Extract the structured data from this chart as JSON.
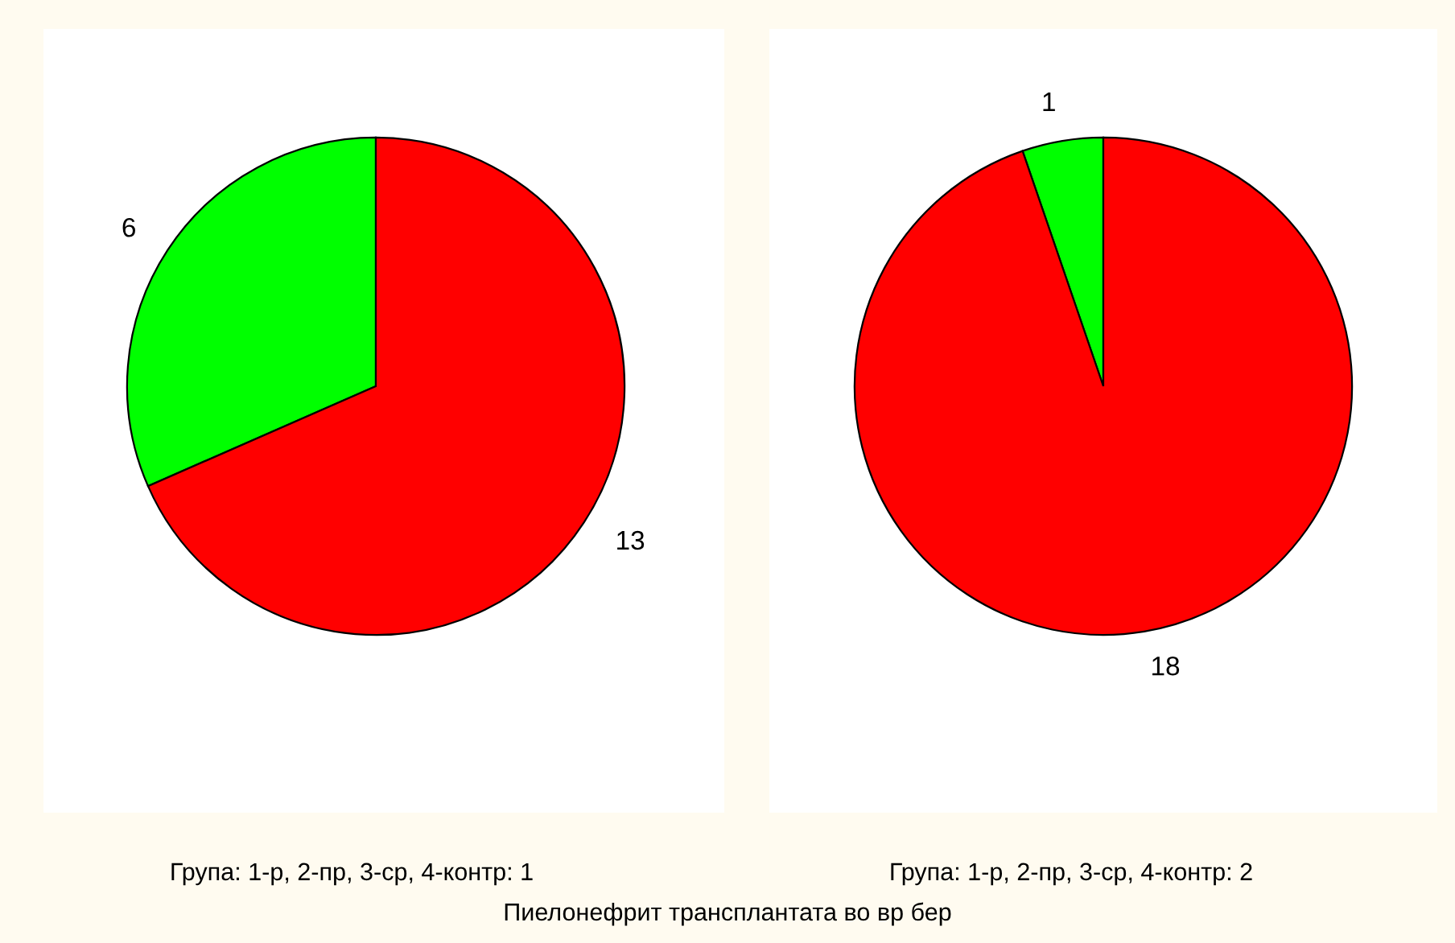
{
  "chart_data": [
    {
      "type": "pie",
      "categories": [
        null,
        null
      ],
      "values": [
        6,
        13
      ],
      "colors": [
        "#00ff00",
        "#ff0000"
      ],
      "data_labels": true,
      "xlabel": "Група: 1-р, 2-пр, 3-ср, 4-контр: 1",
      "annotations": [
        "Пиелонефрит трансплантата во вр бер"
      ]
    },
    {
      "type": "pie",
      "categories": [
        null,
        null
      ],
      "values": [
        1,
        18
      ],
      "colors": [
        "#00ff00",
        "#ff0000"
      ],
      "data_labels": true,
      "xlabel": "Група: 1-р, 2-пр, 3-ср, 4-контр: 2"
    }
  ]
}
